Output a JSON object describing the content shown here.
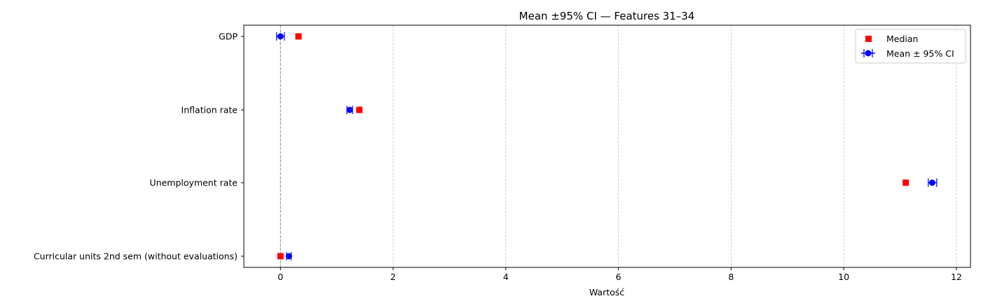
{
  "chart_data": {
    "type": "errorbar",
    "title": "Mean ±95% CI — Features 31–34",
    "xlabel": "Wartość",
    "ylabel": "",
    "xlim": [
      -0.65,
      12.25
    ],
    "xticks": [
      0,
      2,
      4,
      6,
      8,
      10,
      12
    ],
    "grid": "x-dashed",
    "reference_line_x": 0,
    "categories": [
      "GDP",
      "Inflation rate",
      "Unemployment rate",
      "Curricular units 2nd sem (without evaluations)"
    ],
    "series": [
      {
        "name": "Median",
        "marker": "square",
        "color": "#ff0000",
        "values": [
          0.32,
          1.4,
          11.1,
          0.0
        ]
      },
      {
        "name": "Mean ± 95% CI",
        "marker": "circle",
        "color": "#0000ff",
        "values": [
          0.0,
          1.23,
          11.57,
          0.15
        ],
        "ci_low": [
          -0.07,
          1.18,
          11.5,
          0.11
        ],
        "ci_high": [
          0.07,
          1.28,
          11.65,
          0.19
        ]
      }
    ],
    "legend_position": "top-right"
  }
}
